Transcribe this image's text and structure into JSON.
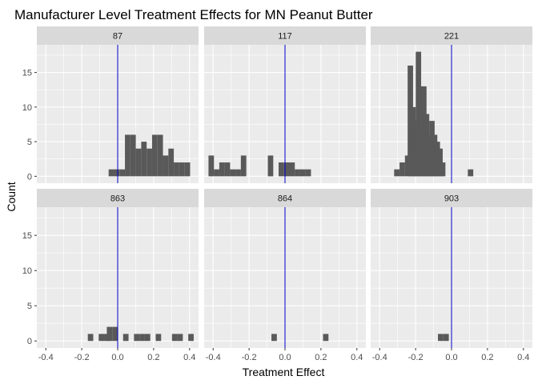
{
  "chart_data": {
    "type": "histogram",
    "title": "Manufacturer Level Treatment Effects for MN Peanut Butter",
    "xlabel": "Treatment Effect",
    "ylabel": "Count",
    "xlim": [
      -0.45,
      0.45
    ],
    "ylim": [
      -1,
      19
    ],
    "x_ticks": [
      -0.4,
      -0.2,
      0.0,
      0.2,
      0.4
    ],
    "x_tick_labels": [
      "-0.4",
      "-0.2",
      "0.0",
      "0.2",
      "0.4"
    ],
    "y_ticks": [
      0,
      5,
      10,
      15
    ],
    "y_tick_labels": [
      "0",
      "5",
      "10",
      "15"
    ],
    "bin_width": 0.0302,
    "reference_line": {
      "x": 0.0,
      "color": "#0000cc"
    },
    "colors": {
      "bar": "#595959",
      "panel": "#ebebeb",
      "grid": "#ffffff",
      "strip": "#d9d9d9"
    },
    "grid": true,
    "facets": [
      {
        "label": "87",
        "bins": [
          {
            "x": -0.0353,
            "count": 1
          },
          {
            "x": -0.0051,
            "count": 1
          },
          {
            "x": 0.0252,
            "count": 1
          },
          {
            "x": 0.0554,
            "count": 6
          },
          {
            "x": 0.0856,
            "count": 6
          },
          {
            "x": 0.1158,
            "count": 4
          },
          {
            "x": 0.1461,
            "count": 5
          },
          {
            "x": 0.1763,
            "count": 4
          },
          {
            "x": 0.2065,
            "count": 6
          },
          {
            "x": 0.2368,
            "count": 6
          },
          {
            "x": 0.267,
            "count": 3
          },
          {
            "x": 0.2972,
            "count": 4
          },
          {
            "x": 0.3274,
            "count": 2
          },
          {
            "x": 0.3577,
            "count": 2
          },
          {
            "x": 0.3879,
            "count": 2
          }
        ]
      },
      {
        "label": "117",
        "bins": [
          {
            "x": -0.4107,
            "count": 3
          },
          {
            "x": -0.3807,
            "count": 1
          },
          {
            "x": -0.3507,
            "count": 2
          },
          {
            "x": -0.3207,
            "count": 2
          },
          {
            "x": -0.2907,
            "count": 1
          },
          {
            "x": -0.2607,
            "count": 1
          },
          {
            "x": -0.2306,
            "count": 3
          },
          {
            "x": -0.0806,
            "count": 3
          },
          {
            "x": -0.0206,
            "count": 2
          },
          {
            "x": 0.0094,
            "count": 2
          },
          {
            "x": 0.0394,
            "count": 2
          },
          {
            "x": 0.0694,
            "count": 1
          },
          {
            "x": 0.0994,
            "count": 1
          },
          {
            "x": 0.1294,
            "count": 1
          }
        ]
      },
      {
        "label": "221",
        "bins": [
          {
            "x": -0.3044,
            "count": 1
          },
          {
            "x": -0.2742,
            "count": 2
          },
          {
            "x": -0.2442,
            "count": 3
          },
          {
            "x": -0.2292,
            "count": 16
          },
          {
            "x": -0.2142,
            "count": 10
          },
          {
            "x": -0.1992,
            "count": 8
          },
          {
            "x": -0.1842,
            "count": 18
          },
          {
            "x": -0.1692,
            "count": 11
          },
          {
            "x": -0.1542,
            "count": 13
          },
          {
            "x": -0.1392,
            "count": 9
          },
          {
            "x": -0.1242,
            "count": 6
          },
          {
            "x": -0.1092,
            "count": 8
          },
          {
            "x": -0.0942,
            "count": 6
          },
          {
            "x": -0.0792,
            "count": 5
          },
          {
            "x": -0.0642,
            "count": 4
          },
          {
            "x": -0.0492,
            "count": 2
          },
          {
            "x": 0.1058,
            "count": 1
          }
        ]
      },
      {
        "label": "863",
        "bins": [
          {
            "x": -0.1511,
            "count": 1
          },
          {
            "x": -0.0907,
            "count": 1
          },
          {
            "x": -0.0605,
            "count": 1
          },
          {
            "x": -0.0454,
            "count": 2
          },
          {
            "x": -0.0151,
            "count": 2
          },
          {
            "x": 0.0453,
            "count": 1
          },
          {
            "x": 0.1058,
            "count": 1
          },
          {
            "x": 0.136,
            "count": 1
          },
          {
            "x": 0.1662,
            "count": 1
          },
          {
            "x": 0.2267,
            "count": 1
          },
          {
            "x": 0.3172,
            "count": 1
          },
          {
            "x": 0.3474,
            "count": 1
          },
          {
            "x": 0.4079,
            "count": 1
          }
        ]
      },
      {
        "label": "864",
        "bins": [
          {
            "x": -0.0605,
            "count": 1
          },
          {
            "x": 0.2267,
            "count": 1
          }
        ]
      },
      {
        "label": "903",
        "bins": [
          {
            "x": -0.0605,
            "count": 1
          },
          {
            "x": -0.0302,
            "count": 1
          }
        ]
      }
    ]
  }
}
